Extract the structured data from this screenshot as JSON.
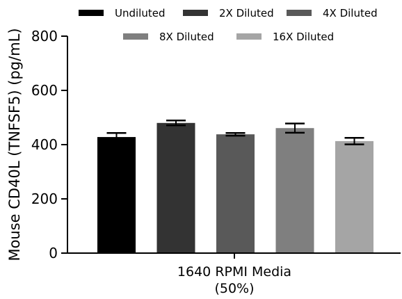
{
  "chart_data": {
    "type": "bar",
    "title": "",
    "ylabel": "Mouse CD40L (TNFSF5) (pg/mL)",
    "xlabel": "",
    "category_lines": [
      "1640 RPMI Media",
      "(50%)"
    ],
    "ylim": [
      0,
      800
    ],
    "yticks": [
      0,
      200,
      400,
      600,
      800
    ],
    "legend_position": "top",
    "series": [
      {
        "name": "Undiluted",
        "value": 428,
        "error": 15,
        "color": "#000000"
      },
      {
        "name": "2X Diluted",
        "value": 480,
        "error": 9,
        "color": "#333333"
      },
      {
        "name": "4X Diluted",
        "value": 438,
        "error": 5,
        "color": "#595959"
      },
      {
        "name": "8X Diluted",
        "value": 461,
        "error": 17,
        "color": "#7f7f7f"
      },
      {
        "name": "16X Diluted",
        "value": 413,
        "error": 12,
        "color": "#a5a5a5"
      }
    ]
  }
}
